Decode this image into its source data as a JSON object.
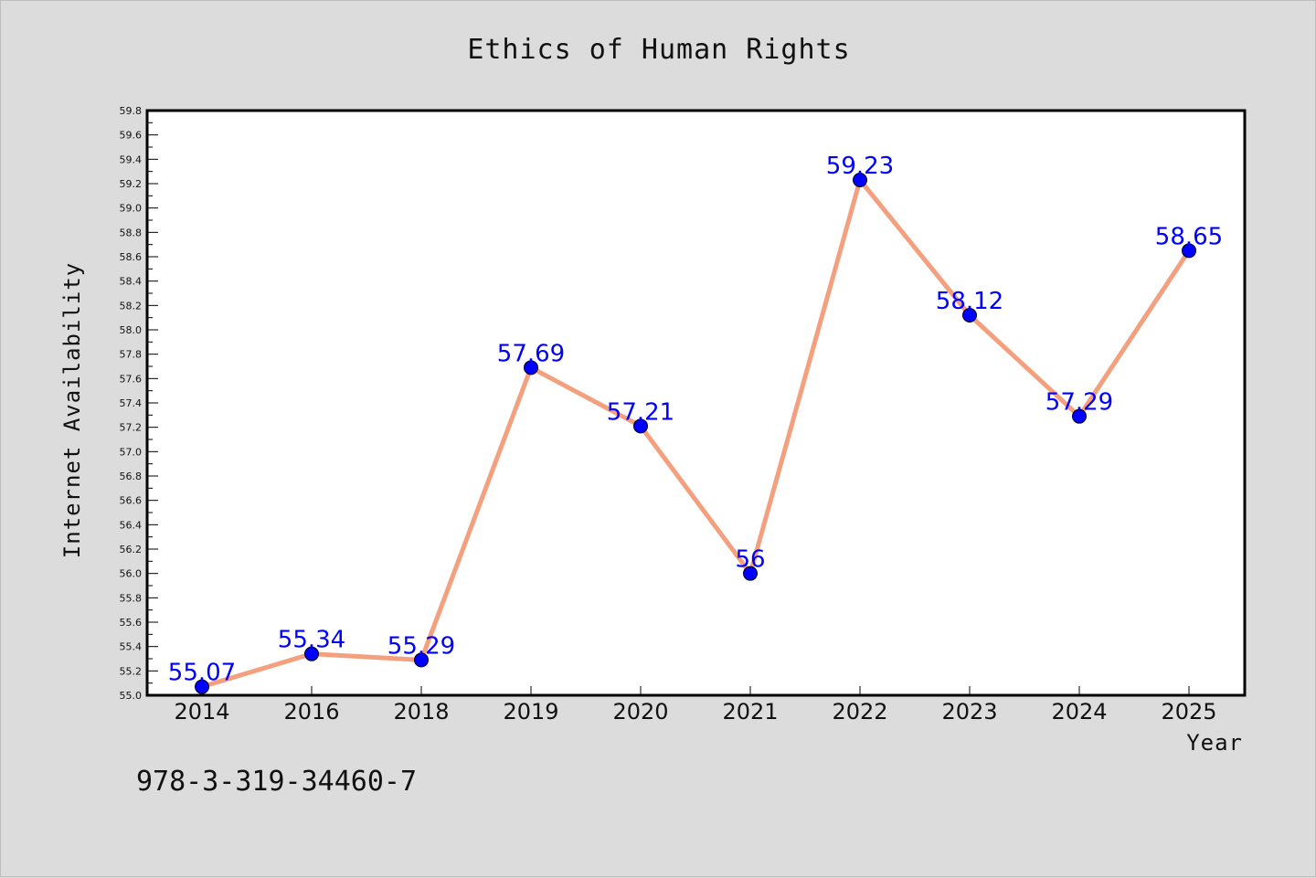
{
  "chart_data": {
    "type": "line",
    "title": "Ethics of Human Rights",
    "xlabel": "Year",
    "ylabel": "Internet Availability",
    "categories": [
      "2014",
      "2016",
      "2018",
      "2019",
      "2020",
      "2021",
      "2022",
      "2023",
      "2024",
      "2025"
    ],
    "series": [
      {
        "values": [
          55.07,
          55.34,
          55.29,
          57.69,
          57.21,
          56,
          59.23,
          58.12,
          57.29,
          58.65
        ],
        "labels": [
          "55.07",
          "55.34",
          "55.29",
          "57.69",
          "57.21",
          "56",
          "59.23",
          "58.12",
          "57.29",
          "58.65"
        ]
      }
    ],
    "ylim": [
      55.0,
      59.8
    ],
    "ytick_step": 0.2,
    "yticks": [
      "55.0",
      "55.2",
      "55.4",
      "55.6",
      "55.8",
      "56.0",
      "56.2",
      "56.4",
      "56.6",
      "56.8",
      "57.0",
      "57.2",
      "57.4",
      "57.6",
      "57.8",
      "58.0",
      "58.2",
      "58.4",
      "58.6",
      "58.8",
      "59.0",
      "59.2",
      "59.4",
      "59.6",
      "59.8"
    ],
    "grid": false,
    "legend": "none",
    "line_color": "#f4a07e",
    "marker_color": "#0000ff",
    "label_color": "#0000ff"
  },
  "annotation": "978-3-319-34460-7"
}
